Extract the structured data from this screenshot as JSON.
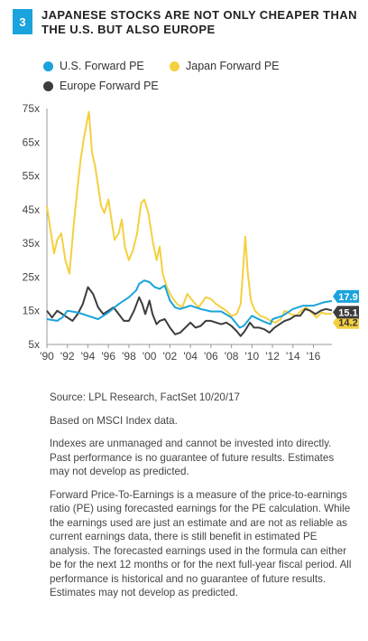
{
  "figure": {
    "number": "3",
    "title": "JAPANESE STOCKS ARE NOT ONLY CHEAPER THAN THE U.S. BUT ALSO EUROPE"
  },
  "notes": {
    "source": "Source: LPL Research, FactSet   10/20/17",
    "based_on": "Based on MSCI Index data.",
    "disclaimer": "Indexes are unmanaged and cannot be invested into directly. Past performance is no guarantee of future results. Estimates may not develop as predicted.",
    "definition": "Forward Price-To-Earnings is a measure of the price-to-earnings ratio (PE) using forecasted earnings for the PE calculation. While the earnings used are just an estimate and are not as reliable as current earnings data, there is still benefit in estimated PE analysis. The forecasted earnings used in the formula can either be for the next 12 months or for the next full-year fiscal period. All performance is historical and no guarantee of future results. Estimates may not develop as predicted."
  },
  "chart_data": {
    "type": "line",
    "title": "JAPANESE STOCKS ARE NOT ONLY CHEAPER THAN THE U.S. BUT ALSO EUROPE",
    "xlabel": "",
    "ylabel": "",
    "ylim": [
      5,
      75
    ],
    "xlim": [
      1990,
      2017.8
    ],
    "y_ticks": [
      "5x",
      "15x",
      "25x",
      "35x",
      "45x",
      "55x",
      "65x",
      "75x"
    ],
    "y_tick_values": [
      5,
      15,
      25,
      35,
      45,
      55,
      65,
      75
    ],
    "x_ticks": [
      "'90",
      "'92",
      "'94",
      "'96",
      "'98",
      "'00",
      "'02",
      "'04",
      "'06",
      "'08",
      "'10",
      "'12",
      "'14",
      "'16"
    ],
    "x_tick_values": [
      1990,
      1992,
      1994,
      1996,
      1998,
      2000,
      2002,
      2004,
      2006,
      2008,
      2010,
      2012,
      2014,
      2016
    ],
    "grid": false,
    "legend_position": "top",
    "series": [
      {
        "name": "U.S. Forward PE",
        "color": "#1aa3dc",
        "end_label": "17.9",
        "end_value": 17.9,
        "points": [
          [
            1990,
            12.5
          ],
          [
            1991,
            12
          ],
          [
            1991.5,
            13
          ],
          [
            1992,
            15
          ],
          [
            1993,
            14.5
          ],
          [
            1994,
            13.5
          ],
          [
            1995,
            12.5
          ],
          [
            1996,
            14.5
          ],
          [
            1997,
            17
          ],
          [
            1998,
            19
          ],
          [
            1998.7,
            21
          ],
          [
            1999,
            23
          ],
          [
            1999.5,
            24
          ],
          [
            2000,
            23.5
          ],
          [
            2000.5,
            22
          ],
          [
            2001,
            21.5
          ],
          [
            2001.5,
            22.5
          ],
          [
            2002,
            18
          ],
          [
            2002.5,
            16
          ],
          [
            2003,
            15.5
          ],
          [
            2004,
            16.5
          ],
          [
            2005,
            15.5
          ],
          [
            2006,
            14.8
          ],
          [
            2007,
            14.8
          ],
          [
            2008,
            13
          ],
          [
            2008.8,
            10
          ],
          [
            2009.2,
            10.5
          ],
          [
            2010,
            13.5
          ],
          [
            2011,
            12
          ],
          [
            2011.8,
            11
          ],
          [
            2012,
            12.5
          ],
          [
            2013,
            13.5
          ],
          [
            2014,
            15.5
          ],
          [
            2015,
            16.5
          ],
          [
            2016,
            16.5
          ],
          [
            2016.5,
            17
          ],
          [
            2017,
            17.5
          ],
          [
            2017.8,
            17.9
          ]
        ]
      },
      {
        "name": "Japan Forward PE",
        "color": "#f4d03f",
        "end_label": "14.2",
        "end_value": 14.2,
        "points": [
          [
            1990,
            46
          ],
          [
            1990.3,
            40
          ],
          [
            1990.7,
            32
          ],
          [
            1991,
            36
          ],
          [
            1991.4,
            38
          ],
          [
            1991.8,
            30
          ],
          [
            1992.2,
            26
          ],
          [
            1992.6,
            40
          ],
          [
            1993,
            52
          ],
          [
            1993.3,
            60
          ],
          [
            1993.6,
            66
          ],
          [
            1993.9,
            71
          ],
          [
            1994.1,
            74
          ],
          [
            1994.4,
            62
          ],
          [
            1994.7,
            58
          ],
          [
            1995,
            52
          ],
          [
            1995.3,
            46
          ],
          [
            1995.6,
            44
          ],
          [
            1996,
            48
          ],
          [
            1996.3,
            42
          ],
          [
            1996.6,
            36
          ],
          [
            1997,
            38
          ],
          [
            1997.3,
            42
          ],
          [
            1997.6,
            34
          ],
          [
            1998,
            30
          ],
          [
            1998.4,
            33
          ],
          [
            1998.8,
            38
          ],
          [
            1999.2,
            47
          ],
          [
            1999.5,
            48
          ],
          [
            1999.9,
            44
          ],
          [
            2000.3,
            36
          ],
          [
            2000.7,
            30
          ],
          [
            2001,
            34
          ],
          [
            2001.3,
            26
          ],
          [
            2001.7,
            22
          ],
          [
            2002.2,
            19
          ],
          [
            2002.7,
            17
          ],
          [
            2003.2,
            16
          ],
          [
            2003.7,
            20
          ],
          [
            2004.2,
            18
          ],
          [
            2004.8,
            16
          ],
          [
            2005.5,
            19
          ],
          [
            2006,
            18.5
          ],
          [
            2006.5,
            17
          ],
          [
            2007,
            16
          ],
          [
            2007.5,
            15
          ],
          [
            2008,
            13.5
          ],
          [
            2008.5,
            14
          ],
          [
            2008.9,
            17
          ],
          [
            2009.15,
            28
          ],
          [
            2009.35,
            37
          ],
          [
            2009.6,
            26
          ],
          [
            2009.9,
            18
          ],
          [
            2010.3,
            15
          ],
          [
            2010.8,
            13.5
          ],
          [
            2011.3,
            13
          ],
          [
            2011.8,
            12
          ],
          [
            2012.3,
            11.5
          ],
          [
            2012.8,
            12.5
          ],
          [
            2013.2,
            15
          ],
          [
            2013.8,
            14
          ],
          [
            2014.3,
            13.5
          ],
          [
            2014.8,
            15
          ],
          [
            2015.3,
            16
          ],
          [
            2015.8,
            14.5
          ],
          [
            2016.3,
            13
          ],
          [
            2016.8,
            14.5
          ],
          [
            2017.3,
            14
          ],
          [
            2017.8,
            14.2
          ]
        ]
      },
      {
        "name": "Europe Forward PE",
        "color": "#3d3d3d",
        "end_label": "15.1",
        "end_value": 15.1,
        "points": [
          [
            1990,
            15
          ],
          [
            1990.5,
            13
          ],
          [
            1991,
            15
          ],
          [
            1991.5,
            14
          ],
          [
            1992,
            13
          ],
          [
            1992.5,
            12
          ],
          [
            1993,
            14
          ],
          [
            1993.5,
            17
          ],
          [
            1994,
            22
          ],
          [
            1994.5,
            20
          ],
          [
            1995,
            16
          ],
          [
            1995.5,
            14
          ],
          [
            1996,
            15
          ],
          [
            1996.5,
            16
          ],
          [
            1997,
            14
          ],
          [
            1997.5,
            12
          ],
          [
            1998,
            12
          ],
          [
            1998.5,
            15
          ],
          [
            1999,
            19
          ],
          [
            1999.3,
            17
          ],
          [
            1999.6,
            14
          ],
          [
            2000,
            18
          ],
          [
            2000.3,
            14
          ],
          [
            2000.7,
            11
          ],
          [
            2001,
            12
          ],
          [
            2001.5,
            12.5
          ],
          [
            2002,
            10
          ],
          [
            2002.5,
            8
          ],
          [
            2003,
            8.5
          ],
          [
            2003.5,
            10
          ],
          [
            2004,
            11.5
          ],
          [
            2004.5,
            10
          ],
          [
            2005,
            10.5
          ],
          [
            2005.5,
            12
          ],
          [
            2006,
            12
          ],
          [
            2006.5,
            11.5
          ],
          [
            2007,
            11
          ],
          [
            2007.5,
            11.5
          ],
          [
            2008,
            10.5
          ],
          [
            2008.5,
            9
          ],
          [
            2008.9,
            7.5
          ],
          [
            2009.3,
            9
          ],
          [
            2009.8,
            11.5
          ],
          [
            2010.2,
            10
          ],
          [
            2010.7,
            10
          ],
          [
            2011.2,
            9.5
          ],
          [
            2011.7,
            8.5
          ],
          [
            2012.2,
            10
          ],
          [
            2012.7,
            11
          ],
          [
            2013.2,
            12
          ],
          [
            2013.7,
            12.5
          ],
          [
            2014.2,
            13.5
          ],
          [
            2014.7,
            13.5
          ],
          [
            2015.2,
            15.5
          ],
          [
            2015.7,
            15
          ],
          [
            2016.2,
            14
          ],
          [
            2016.7,
            15
          ],
          [
            2017.2,
            15.5
          ],
          [
            2017.8,
            15.1
          ]
        ]
      }
    ]
  }
}
